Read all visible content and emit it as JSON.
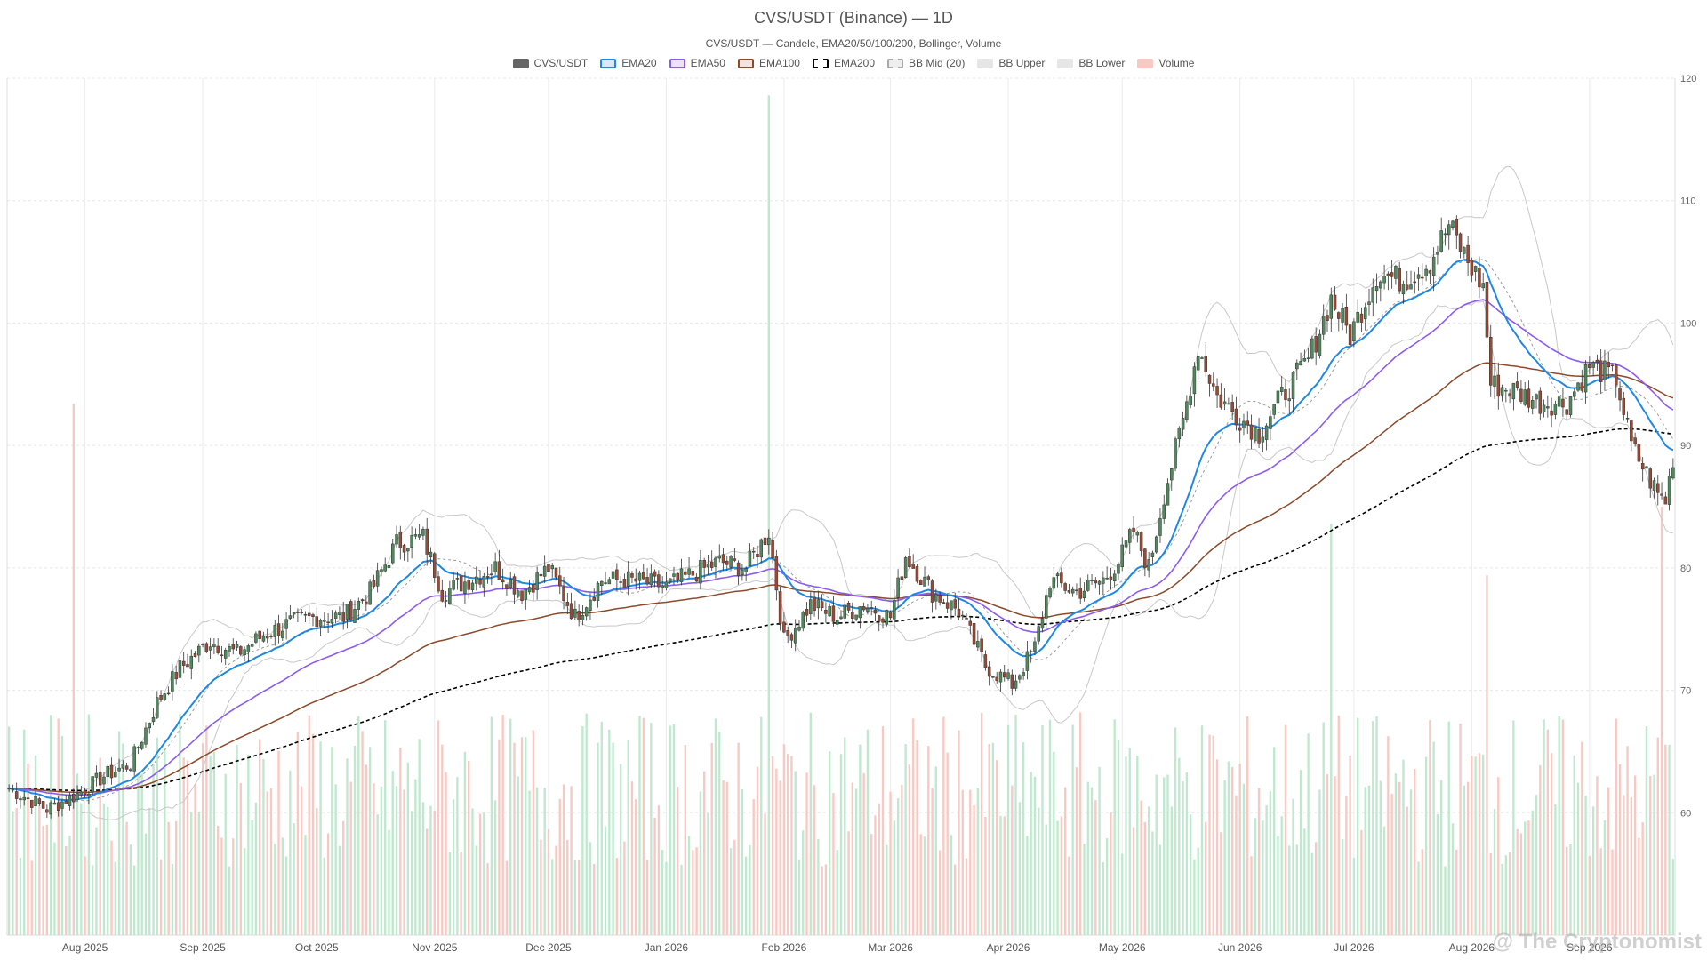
{
  "chart_data": {
    "type": "candlestick",
    "title": "CVS/USDT (Binance) — 1D",
    "subtitle": "CVS/USDT — Candele, EMA20/50/100/200, Bollinger, Volume",
    "legend": [
      {
        "name": "CVS/USDT",
        "color": "#666666",
        "border": "#666666",
        "style": "solid"
      },
      {
        "name": "EMA20",
        "color": "#dbe8f7",
        "border": "#1e88e5",
        "style": "solid"
      },
      {
        "name": "EMA50",
        "color": "#ece3fb",
        "border": "#8c5cf0",
        "style": "solid"
      },
      {
        "name": "EMA100",
        "color": "#f2e3dc",
        "border": "#8b4a2b",
        "style": "solid"
      },
      {
        "name": "EMA200",
        "color": "#ffffff",
        "border": "#000000",
        "style": "dashed"
      },
      {
        "name": "BB Mid (20)",
        "color": "#eeeeee",
        "border": "#aaaaaa",
        "style": "dashed"
      },
      {
        "name": "BB Upper",
        "color": "#e6e6e6",
        "border": "#e6e6e6",
        "style": "solid"
      },
      {
        "name": "BB Lower",
        "color": "#e6e6e6",
        "border": "#e6e6e6",
        "style": "solid"
      },
      {
        "name": "Volume",
        "color": "#f7c9c2",
        "border": "#f7c9c2",
        "style": "solid"
      }
    ],
    "x_labels": [
      "Aug 2025",
      "Sep 2025",
      "Oct 2025",
      "Nov 2025",
      "Dec 2025",
      "Jan 2026",
      "Feb 2026",
      "Mar 2026",
      "Apr 2026",
      "May 2026",
      "Jun 2026",
      "Jul 2026",
      "Aug 2026",
      "Sep 2026"
    ],
    "x_start": "2025-07-12",
    "x_end": "2026-09-23",
    "y_ticks": [
      60,
      70,
      80,
      90,
      100,
      110,
      120
    ],
    "ylim": [
      50,
      120
    ],
    "y_axis_position": "right",
    "grid": true,
    "legend_position": "top-center",
    "colors": {
      "up": "#4e8a5b",
      "down": "#9d4a35",
      "vol_up": "#bfe8cf",
      "vol_down": "#f7c9c2",
      "ema20": "#1e88e5",
      "ema50": "#8c5cf0",
      "ema100": "#8b4a2b",
      "ema200": "#000000",
      "bb_band": "#c8c8c8",
      "bb_mid": "#999999"
    },
    "price_anchors": [
      [
        "2025-07-12",
        62.0
      ],
      [
        "2025-07-22",
        60.3
      ],
      [
        "2025-07-30",
        61.5
      ],
      [
        "2025-08-06",
        63.0
      ],
      [
        "2025-08-13",
        64.0
      ],
      [
        "2025-08-20",
        69.0
      ],
      [
        "2025-08-26",
        71.8
      ],
      [
        "2025-09-03",
        74.0
      ],
      [
        "2025-09-10",
        73.0
      ],
      [
        "2025-09-17",
        74.5
      ],
      [
        "2025-09-24",
        75.5
      ],
      [
        "2025-10-01",
        76.0
      ],
      [
        "2025-10-08",
        76.0
      ],
      [
        "2025-10-15",
        78.0
      ],
      [
        "2025-10-22",
        82.0
      ],
      [
        "2025-10-29",
        82.5
      ],
      [
        "2025-11-03",
        78.0
      ],
      [
        "2025-11-10",
        79.0
      ],
      [
        "2025-11-17",
        80.0
      ],
      [
        "2025-11-24",
        78.0
      ],
      [
        "2025-12-01",
        80.0
      ],
      [
        "2025-12-08",
        76.0
      ],
      [
        "2025-12-15",
        79.0
      ],
      [
        "2025-12-22",
        79.0
      ],
      [
        "2026-01-01",
        78.5
      ],
      [
        "2026-01-08",
        79.5
      ],
      [
        "2026-01-15",
        80.5
      ],
      [
        "2026-01-22",
        80.0
      ],
      [
        "2026-01-28",
        83.0
      ],
      [
        "2026-02-01",
        74.0
      ],
      [
        "2026-02-08",
        77.0
      ],
      [
        "2026-02-15",
        76.0
      ],
      [
        "2026-02-22",
        77.0
      ],
      [
        "2026-03-01",
        76.0
      ],
      [
        "2026-03-05",
        81.0
      ],
      [
        "2026-03-12",
        78.0
      ],
      [
        "2026-03-19",
        76.5
      ],
      [
        "2026-03-26",
        72.0
      ],
      [
        "2026-04-02",
        70.5
      ],
      [
        "2026-04-08",
        73.5
      ],
      [
        "2026-04-12",
        79.0
      ],
      [
        "2026-04-19",
        78.0
      ],
      [
        "2026-04-26",
        79.0
      ],
      [
        "2026-04-30",
        80.5
      ],
      [
        "2026-05-04",
        83.0
      ],
      [
        "2026-05-08",
        80.0
      ],
      [
        "2026-05-12",
        86.0
      ],
      [
        "2026-05-17",
        92.0
      ],
      [
        "2026-05-21",
        98.0
      ],
      [
        "2026-05-26",
        94.0
      ],
      [
        "2026-05-31",
        92.5
      ],
      [
        "2026-06-06",
        91.0
      ],
      [
        "2026-06-12",
        94.0
      ],
      [
        "2026-06-19",
        97.0
      ],
      [
        "2026-06-25",
        102.0
      ],
      [
        "2026-06-30",
        99.0
      ],
      [
        "2026-07-07",
        104.0
      ],
      [
        "2026-07-14",
        103.5
      ],
      [
        "2026-07-21",
        105.0
      ],
      [
        "2026-07-26",
        108.0
      ],
      [
        "2026-07-31",
        105.0
      ],
      [
        "2026-08-04",
        103.0
      ],
      [
        "2026-08-06",
        95.0
      ],
      [
        "2026-08-12",
        94.5
      ],
      [
        "2026-08-19",
        93.5
      ],
      [
        "2026-08-26",
        93.5
      ],
      [
        "2026-09-01",
        96.5
      ],
      [
        "2026-09-08",
        95.5
      ],
      [
        "2026-09-12",
        90.0
      ],
      [
        "2026-09-19",
        86.0
      ],
      [
        "2026-09-21",
        85.5
      ],
      [
        "2026-09-23",
        89.0
      ]
    ],
    "volume_spikes": [
      [
        "2025-07-29",
        0.62
      ],
      [
        "2026-01-28",
        0.98
      ],
      [
        "2026-09-20",
        0.5
      ],
      [
        "2026-06-25",
        0.48
      ],
      [
        "2026-08-05",
        0.42
      ]
    ]
  },
  "watermark": "@ The Cryptonomist"
}
